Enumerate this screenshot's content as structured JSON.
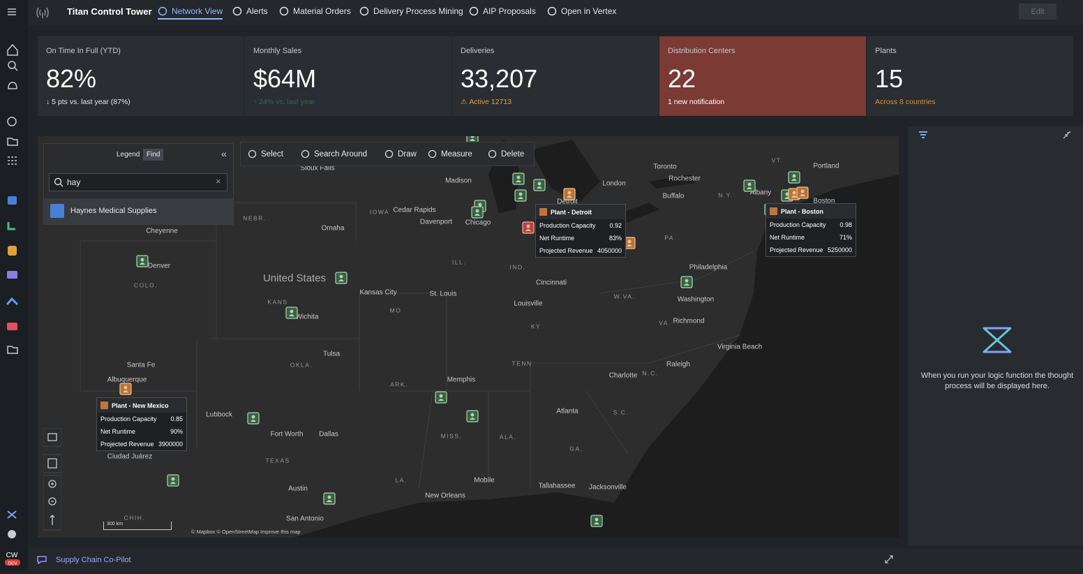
{
  "nav": {
    "app_title": "Titan Control Tower",
    "tabs": [
      "Network View",
      "Alerts",
      "Material Orders",
      "Delivery Process Mining",
      "AIP Proposals",
      "Open in Vertex"
    ],
    "edit": "Edit",
    "user": "CW",
    "env": "DEV"
  },
  "kpis": [
    {
      "label": "On Time In Full (YTD)",
      "value": "82%",
      "sub": "↓ 5 pts vs. last year (87%)"
    },
    {
      "label": "Monthly Sales",
      "value": "$64M",
      "sub": "↑ 24% vs. last year"
    },
    {
      "label": "Deliveries",
      "value": "33,207",
      "sub": "Active 12713"
    },
    {
      "label": "Distribution Centers",
      "value": "22",
      "sub": "1 new notification"
    },
    {
      "label": "Plants",
      "value": "15",
      "sub": "Across 8 countries"
    }
  ],
  "legend": {
    "tabs": [
      "Legend",
      "Find"
    ],
    "search": "hay",
    "result": "Haynes Medical Supplies"
  },
  "toolbar": [
    "Select",
    "Search Around",
    "Draw",
    "Measure",
    "Delete"
  ],
  "map_labels": [
    "Sioux Falls",
    "Madison",
    "Toronto",
    "Rochester",
    "Portland",
    "London",
    "Buffalo",
    "IOWA",
    "Cedar Rapids",
    "Davenport",
    "NEBR.",
    "Omaha",
    "Chicago",
    "Cheyenne",
    "Denver",
    "COLO.",
    "United States",
    "Kansas City",
    "St. Louis",
    "ILL.",
    "IND.",
    "Cincinnati",
    "Louisville",
    "KANS",
    "MO",
    "Wichita",
    "KY",
    "W.VA.",
    "Washington",
    "Philadelphia",
    "PA.",
    "Richmond",
    "VA.",
    "Virginia Beach",
    "Raleigh",
    "N.C.",
    "Charlotte",
    "TENN.",
    "OKLA.",
    "Tulsa",
    "Santa Fe",
    "Albuquerque",
    "ARK.",
    "Memphis",
    "Atlanta",
    "S.C.",
    "Lubbock",
    "Fort Worth",
    "Dallas",
    "MISS.",
    "ALA.",
    "GA.",
    "TEXAS",
    "Ciudad Juárez",
    "LA.",
    "Mobile",
    "Tallahassee",
    "Jacksonville",
    "Austin",
    "New Orleans",
    "San Antonio",
    "CHIH.",
    "Detroit",
    "Boston",
    "Albany",
    "N.Y.",
    "VT."
  ],
  "popups": [
    {
      "title": "Plant - Detroit",
      "rows": [
        [
          "Production Capacity",
          "0.92"
        ],
        [
          "Net Runtime",
          "83%"
        ],
        [
          "Projected Revenue",
          "4050000"
        ]
      ]
    },
    {
      "title": "Plant - Boston",
      "rows": [
        [
          "Production Capacity",
          "0.98"
        ],
        [
          "Net Runtime",
          "71%"
        ],
        [
          "Projected Revenue",
          "5250000"
        ]
      ]
    },
    {
      "title": "Plant - New Mexico",
      "rows": [
        [
          "Production Capacity",
          "0.85"
        ],
        [
          "Net Runtime",
          "90%"
        ],
        [
          "Projected Revenue",
          "3900000"
        ]
      ]
    }
  ],
  "scale": "300 km",
  "attribution": "© Mapbox © OpenStreetMap Improve this map",
  "panel_text": "When you run your logic function the thought process will be displayed here.",
  "copilot": "Supply Chain Co-Pilot"
}
